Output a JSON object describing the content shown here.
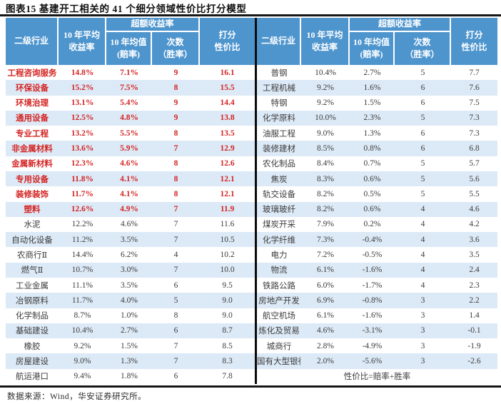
{
  "title": "图表15 基建开工相关的 41 个细分领域性价比打分模型",
  "source_note": "数据来源：Wind，华安证券研究所。",
  "colors": {
    "header_bg": "#4e95ce",
    "alt_row_bg": "#dce9f6",
    "highlight_red": "#d42423",
    "body_text": "#3c3c3c",
    "rule_black": "#161616"
  },
  "columns": {
    "industry": "二级行业",
    "avg_l1": "10 年平均",
    "avg_l2": "收益率",
    "excess": "超额收益率",
    "odds_l1": "10 年均值",
    "odds_l2": "(赔率)",
    "win_l1": "次数",
    "win_l2": "（胜率）",
    "score_l1": "打分",
    "score_l2": "性价比"
  },
  "left_table": {
    "rows": [
      {
        "name": "工程咨询服务",
        "avg": "14.8%",
        "odds": "7.1%",
        "win": "9",
        "score": "16.1",
        "hl": true
      },
      {
        "name": "环保设备",
        "avg": "15.2%",
        "odds": "7.5%",
        "win": "8",
        "score": "15.5",
        "hl": true
      },
      {
        "name": "环境治理",
        "avg": "13.1%",
        "odds": "5.4%",
        "win": "9",
        "score": "14.4",
        "hl": true
      },
      {
        "name": "通用设备",
        "avg": "12.5%",
        "odds": "4.8%",
        "win": "9",
        "score": "13.8",
        "hl": true
      },
      {
        "name": "专业工程",
        "avg": "13.2%",
        "odds": "5.5%",
        "win": "8",
        "score": "13.5",
        "hl": true
      },
      {
        "name": "非金属材料",
        "avg": "13.6%",
        "odds": "5.9%",
        "win": "7",
        "score": "12.9",
        "hl": true
      },
      {
        "name": "金属新材料",
        "avg": "12.3%",
        "odds": "4.6%",
        "win": "8",
        "score": "12.6",
        "hl": true
      },
      {
        "name": "专用设备",
        "avg": "11.8%",
        "odds": "4.1%",
        "win": "8",
        "score": "12.1",
        "hl": true
      },
      {
        "name": "装修装饰",
        "avg": "11.7%",
        "odds": "4.1%",
        "win": "8",
        "score": "12.1",
        "hl": true
      },
      {
        "name": "塑料",
        "avg": "12.6%",
        "odds": "4.9%",
        "win": "7",
        "score": "11.9",
        "hl": true
      },
      {
        "name": "水泥",
        "avg": "12.2%",
        "odds": "4.6%",
        "win": "7",
        "score": "11.6",
        "hl": false
      },
      {
        "name": "自动化设备",
        "avg": "11.2%",
        "odds": "3.5%",
        "win": "7",
        "score": "10.5",
        "hl": false
      },
      {
        "name": "农商行Ⅱ",
        "avg": "14.4%",
        "odds": "6.2%",
        "win": "4",
        "score": "10.2",
        "hl": false
      },
      {
        "name": "燃气Ⅱ",
        "avg": "10.7%",
        "odds": "3.0%",
        "win": "7",
        "score": "10.0",
        "hl": false
      },
      {
        "name": "工业金属",
        "avg": "11.1%",
        "odds": "3.5%",
        "win": "6",
        "score": "9.5",
        "hl": false
      },
      {
        "name": "冶钢原料",
        "avg": "11.7%",
        "odds": "4.0%",
        "win": "5",
        "score": "9.0",
        "hl": false
      },
      {
        "name": "化学制品",
        "avg": "8.7%",
        "odds": "1.0%",
        "win": "8",
        "score": "9.0",
        "hl": false
      },
      {
        "name": "基础建设",
        "avg": "10.4%",
        "odds": "2.7%",
        "win": "6",
        "score": "8.7",
        "hl": false
      },
      {
        "name": "橡胶",
        "avg": "9.2%",
        "odds": "1.5%",
        "win": "7",
        "score": "8.5",
        "hl": false
      },
      {
        "name": "房屋建设",
        "avg": "9.0%",
        "odds": "1.3%",
        "win": "7",
        "score": "8.3",
        "hl": false
      },
      {
        "name": "航运港口",
        "avg": "9.4%",
        "odds": "1.8%",
        "win": "6",
        "score": "7.8",
        "hl": false
      }
    ]
  },
  "right_table": {
    "rows": [
      {
        "name": "普钢",
        "avg": "10.4%",
        "odds": "2.7%",
        "win": "5",
        "score": "7.7",
        "hl": false
      },
      {
        "name": "工程机械",
        "avg": "9.2%",
        "odds": "1.6%",
        "win": "6",
        "score": "7.6",
        "hl": false
      },
      {
        "name": "特钢",
        "avg": "9.2%",
        "odds": "1.5%",
        "win": "6",
        "score": "7.5",
        "hl": false
      },
      {
        "name": "化学原料",
        "avg": "10.0%",
        "odds": "2.3%",
        "win": "5",
        "score": "7.3",
        "hl": false
      },
      {
        "name": "油服工程",
        "avg": "9.0%",
        "odds": "1.3%",
        "win": "6",
        "score": "7.3",
        "hl": false
      },
      {
        "name": "装修建材",
        "avg": "8.5%",
        "odds": "0.8%",
        "win": "6",
        "score": "6.8",
        "hl": false
      },
      {
        "name": "农化制品",
        "avg": "8.4%",
        "odds": "0.7%",
        "win": "5",
        "score": "5.7",
        "hl": false
      },
      {
        "name": "焦炭",
        "avg": "8.3%",
        "odds": "0.6%",
        "win": "5",
        "score": "5.6",
        "hl": false
      },
      {
        "name": "轨交设备",
        "avg": "8.2%",
        "odds": "0.5%",
        "win": "5",
        "score": "5.5",
        "hl": false
      },
      {
        "name": "玻璃玻纤",
        "avg": "8.2%",
        "odds": "0.6%",
        "win": "4",
        "score": "4.6",
        "hl": false
      },
      {
        "name": "煤炭开采",
        "avg": "7.9%",
        "odds": "0.2%",
        "win": "4",
        "score": "4.2",
        "hl": false
      },
      {
        "name": "化学纤维",
        "avg": "7.3%",
        "odds": "-0.4%",
        "win": "4",
        "score": "3.6",
        "hl": false
      },
      {
        "name": "电力",
        "avg": "7.2%",
        "odds": "-0.5%",
        "win": "4",
        "score": "3.5",
        "hl": false
      },
      {
        "name": "物流",
        "avg": "6.1%",
        "odds": "-1.6%",
        "win": "4",
        "score": "2.4",
        "hl": false
      },
      {
        "name": "铁路公路",
        "avg": "6.0%",
        "odds": "-1.7%",
        "win": "4",
        "score": "2.3",
        "hl": false
      },
      {
        "name": "房地产开发",
        "avg": "6.9%",
        "odds": "-0.8%",
        "win": "3",
        "score": "2.2",
        "hl": false
      },
      {
        "name": "航空机场",
        "avg": "6.1%",
        "odds": "-1.6%",
        "win": "3",
        "score": "1.4",
        "hl": false
      },
      {
        "name": "炼化及贸易",
        "avg": "4.6%",
        "odds": "-3.1%",
        "win": "3",
        "score": "-0.1",
        "hl": false
      },
      {
        "name": "城商行",
        "avg": "2.8%",
        "odds": "-4.9%",
        "win": "3",
        "score": "-1.9",
        "hl": false
      },
      {
        "name": "国有大型银行",
        "avg": "2.0%",
        "odds": "-5.6%",
        "win": "3",
        "score": "-2.6",
        "hl": false
      }
    ],
    "note": "性价比=赔率+胜率"
  }
}
